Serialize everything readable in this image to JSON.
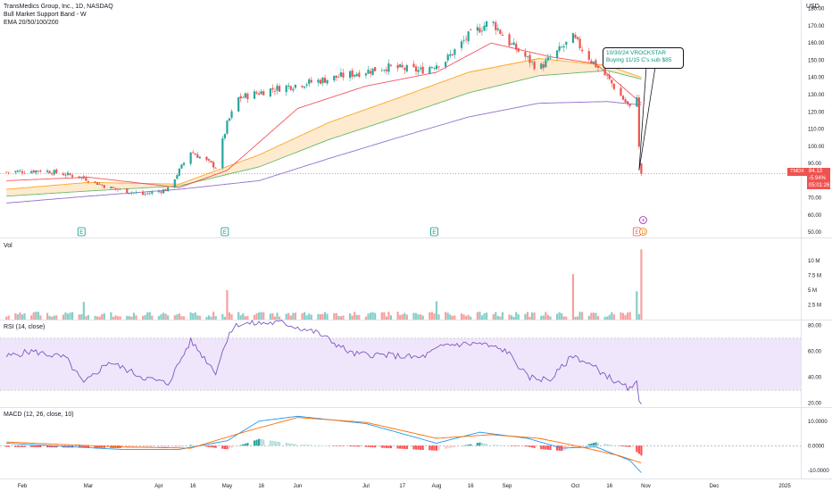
{
  "header": {
    "symbol_title": "TransMedics Group, Inc., 1D, NASDAQ",
    "indicator_1": "Bull Market Support Band - W",
    "indicator_2": "EMA 20/50/100/200",
    "currency": "USD"
  },
  "price_tag": {
    "ticker": "TMDX",
    "price": "84.13",
    "change": "-5.94%",
    "countdown": "05:01:26"
  },
  "annotation": {
    "line1": "10/30/24 VROCKSTAR",
    "line2": "Buying 11/15 C's sub $85"
  },
  "earnings_markers": [
    {
      "label": "E",
      "date": "Feb 27"
    },
    {
      "label": "E",
      "date": "Apr 30"
    },
    {
      "label": "E",
      "date": "Jul 31"
    },
    {
      "label": "E",
      "date": "Oct 28"
    }
  ],
  "event_markers": {
    "dividend": "D",
    "add": "+"
  },
  "panes": {
    "volume_title": "Vol",
    "rsi_title": "RSI (14, close)",
    "macd_title": "MACD (12, 26, close, 10)"
  },
  "colors": {
    "up": "#26a69a",
    "down": "#ef5350",
    "ema20": "#f23645",
    "ema50": "#ff9800",
    "ema100": "#4caf50",
    "ema200": "#7e57c2",
    "band_fill": "#fcd9a8",
    "rsi_band": "#f0e6fb",
    "macd_line": "#2196f3",
    "signal_line": "#ff6d00"
  },
  "chart_data": [
    {
      "type": "line",
      "title": "TransMedics Group, Inc., 1D, NASDAQ",
      "ylim": [
        47,
        185
      ],
      "y_ticks": [
        180,
        170,
        160,
        150,
        140,
        130,
        120,
        110,
        100,
        90,
        80,
        70,
        60,
        50
      ],
      "x_tick_labels": [
        "Feb",
        "Mar",
        "Apr",
        "16",
        "May",
        "16",
        "Jun",
        "Jul",
        "17",
        "Aug",
        "16",
        "Sep",
        "Oct",
        "16",
        "Nov",
        "Dec",
        "2025"
      ],
      "x_tick_dates": [
        "2024-02-01",
        "2024-03-01",
        "2024-04-01",
        "2024-04-16",
        "2024-05-01",
        "2024-05-16",
        "2024-06-01",
        "2024-07-01",
        "2024-07-17",
        "2024-08-01",
        "2024-08-16",
        "2024-09-01",
        "2024-10-01",
        "2024-10-16",
        "2024-11-01",
        "2024-12-01",
        "2025-01-01"
      ],
      "series": [
        {
          "name": "Price",
          "points": [
            [
              "2024-01-25",
              85
            ],
            [
              "2024-02-10",
              86
            ],
            [
              "2024-02-27",
              82
            ],
            [
              "2024-03-10",
              76
            ],
            [
              "2024-03-25",
              72
            ],
            [
              "2024-04-05",
              75
            ],
            [
              "2024-04-15",
              97
            ],
            [
              "2024-04-26",
              88
            ],
            [
              "2024-05-01",
              113
            ],
            [
              "2024-05-06",
              128
            ],
            [
              "2024-05-20",
              133
            ],
            [
              "2024-06-10",
              138
            ],
            [
              "2024-06-25",
              142
            ],
            [
              "2024-07-10",
              146
            ],
            [
              "2024-07-25",
              144
            ],
            [
              "2024-08-05",
              150
            ],
            [
              "2024-08-15",
              164
            ],
            [
              "2024-08-25",
              173
            ],
            [
              "2024-09-02",
              160
            ],
            [
              "2024-09-15",
              145
            ],
            [
              "2024-09-30",
              163
            ],
            [
              "2024-10-08",
              150
            ],
            [
              "2024-10-15",
              140
            ],
            [
              "2024-10-25",
              122
            ],
            [
              "2024-10-28",
              130
            ],
            [
              "2024-10-29",
              99
            ],
            [
              "2024-10-30",
              84.13
            ]
          ]
        },
        {
          "name": "EMA 20",
          "points": [
            [
              "2024-01-25",
              80
            ],
            [
              "2024-03-01",
              82
            ],
            [
              "2024-04-10",
              76
            ],
            [
              "2024-05-01",
              86
            ],
            [
              "2024-06-01",
              122
            ],
            [
              "2024-07-01",
              135
            ],
            [
              "2024-08-01",
              143
            ],
            [
              "2024-08-25",
              160
            ],
            [
              "2024-09-20",
              152
            ],
            [
              "2024-10-10",
              148
            ],
            [
              "2024-10-30",
              125
            ]
          ]
        },
        {
          "name": "EMA 50",
          "points": [
            [
              "2024-01-25",
              75
            ],
            [
              "2024-03-01",
              79
            ],
            [
              "2024-04-10",
              78
            ],
            [
              "2024-05-15",
              95
            ],
            [
              "2024-06-15",
              114
            ],
            [
              "2024-07-15",
              128
            ],
            [
              "2024-08-15",
              143
            ],
            [
              "2024-09-15",
              151
            ],
            [
              "2024-10-15",
              147
            ],
            [
              "2024-10-30",
              140
            ]
          ]
        },
        {
          "name": "EMA 100",
          "points": [
            [
              "2024-01-25",
              71
            ],
            [
              "2024-03-01",
              74
            ],
            [
              "2024-04-10",
              77
            ],
            [
              "2024-05-15",
              88
            ],
            [
              "2024-06-15",
              104
            ],
            [
              "2024-07-15",
              117
            ],
            [
              "2024-08-15",
              131
            ],
            [
              "2024-09-15",
              141
            ],
            [
              "2024-10-15",
              144
            ],
            [
              "2024-10-30",
              139
            ]
          ]
        },
        {
          "name": "EMA 200",
          "points": [
            [
              "2024-01-25",
              67
            ],
            [
              "2024-03-01",
              71
            ],
            [
              "2024-04-10",
              75
            ],
            [
              "2024-05-15",
              80
            ],
            [
              "2024-06-15",
              93
            ],
            [
              "2024-07-15",
              105
            ],
            [
              "2024-08-15",
              117
            ],
            [
              "2024-09-15",
              125
            ],
            [
              "2024-10-15",
              126
            ],
            [
              "2024-10-30",
              124
            ]
          ]
        }
      ]
    },
    {
      "type": "bar",
      "title": "Vol",
      "ylim": [
        0,
        13
      ],
      "y_ticks": [
        {
          "value": 10,
          "label": "10 M"
        },
        {
          "value": 7.5,
          "label": "7.5 M"
        },
        {
          "value": 5,
          "label": "5 M"
        },
        {
          "value": 2.5,
          "label": "2.5 M"
        }
      ],
      "baseline_millions": 0.9,
      "spikes": [
        [
          "2024-02-28",
          3.0
        ],
        [
          "2024-05-01",
          5.0
        ],
        [
          "2024-08-01",
          3.1
        ],
        [
          "2024-09-30",
          7.7
        ],
        [
          "2024-10-28",
          4.8
        ],
        [
          "2024-10-30",
          11.9
        ]
      ]
    },
    {
      "type": "line",
      "title": "RSI (14, close)",
      "ylim": [
        17,
        83
      ],
      "band": [
        30,
        70
      ],
      "y_ticks": [
        80.0,
        60.0,
        40.0,
        20.0
      ],
      "series": [
        {
          "name": "RSI",
          "points": [
            [
              "2024-01-25",
              56
            ],
            [
              "2024-02-05",
              60
            ],
            [
              "2024-02-20",
              55
            ],
            [
              "2024-02-28",
              35
            ],
            [
              "2024-03-10",
              52
            ],
            [
              "2024-03-25",
              40
            ],
            [
              "2024-04-05",
              35
            ],
            [
              "2024-04-15",
              68
            ],
            [
              "2024-04-26",
              44
            ],
            [
              "2024-05-02",
              75
            ],
            [
              "2024-05-06",
              81
            ],
            [
              "2024-05-25",
              82
            ],
            [
              "2024-06-10",
              74
            ],
            [
              "2024-06-25",
              58
            ],
            [
              "2024-07-10",
              57
            ],
            [
              "2024-07-25",
              55
            ],
            [
              "2024-08-05",
              65
            ],
            [
              "2024-08-20",
              66
            ],
            [
              "2024-09-01",
              60
            ],
            [
              "2024-09-10",
              40
            ],
            [
              "2024-09-20",
              38
            ],
            [
              "2024-09-30",
              57
            ],
            [
              "2024-10-10",
              47
            ],
            [
              "2024-10-20",
              35
            ],
            [
              "2024-10-26",
              30
            ],
            [
              "2024-10-28",
              37
            ],
            [
              "2024-10-29",
              24
            ],
            [
              "2024-10-30",
              20
            ]
          ]
        }
      ]
    },
    {
      "type": "bar",
      "title": "MACD (12, 26, close, 10)",
      "ylim": [
        -13,
        15
      ],
      "y_ticks": [
        10.0,
        0.0,
        -10.0
      ],
      "series": [
        {
          "name": "MACD",
          "points": [
            [
              "2024-01-25",
              1.0
            ],
            [
              "2024-03-15",
              -1.5
            ],
            [
              "2024-04-10",
              -1.5
            ],
            [
              "2024-05-01",
              2
            ],
            [
              "2024-05-15",
              10
            ],
            [
              "2024-06-01",
              12
            ],
            [
              "2024-07-01",
              9
            ],
            [
              "2024-08-01",
              1
            ],
            [
              "2024-08-20",
              5.5
            ],
            [
              "2024-09-10",
              3
            ],
            [
              "2024-09-25",
              -1
            ],
            [
              "2024-10-10",
              -0.5
            ],
            [
              "2024-10-25",
              -6
            ],
            [
              "2024-10-30",
              -11
            ]
          ]
        },
        {
          "name": "Signal",
          "points": [
            [
              "2024-01-25",
              1.5
            ],
            [
              "2024-03-15",
              -0.5
            ],
            [
              "2024-04-15",
              -1.0
            ],
            [
              "2024-05-10",
              6
            ],
            [
              "2024-06-01",
              11.5
            ],
            [
              "2024-07-01",
              9.5
            ],
            [
              "2024-08-01",
              3
            ],
            [
              "2024-08-25",
              4.5
            ],
            [
              "2024-09-15",
              3
            ],
            [
              "2024-10-01",
              0
            ],
            [
              "2024-10-20",
              -4
            ],
            [
              "2024-10-30",
              -7
            ]
          ]
        }
      ]
    }
  ]
}
